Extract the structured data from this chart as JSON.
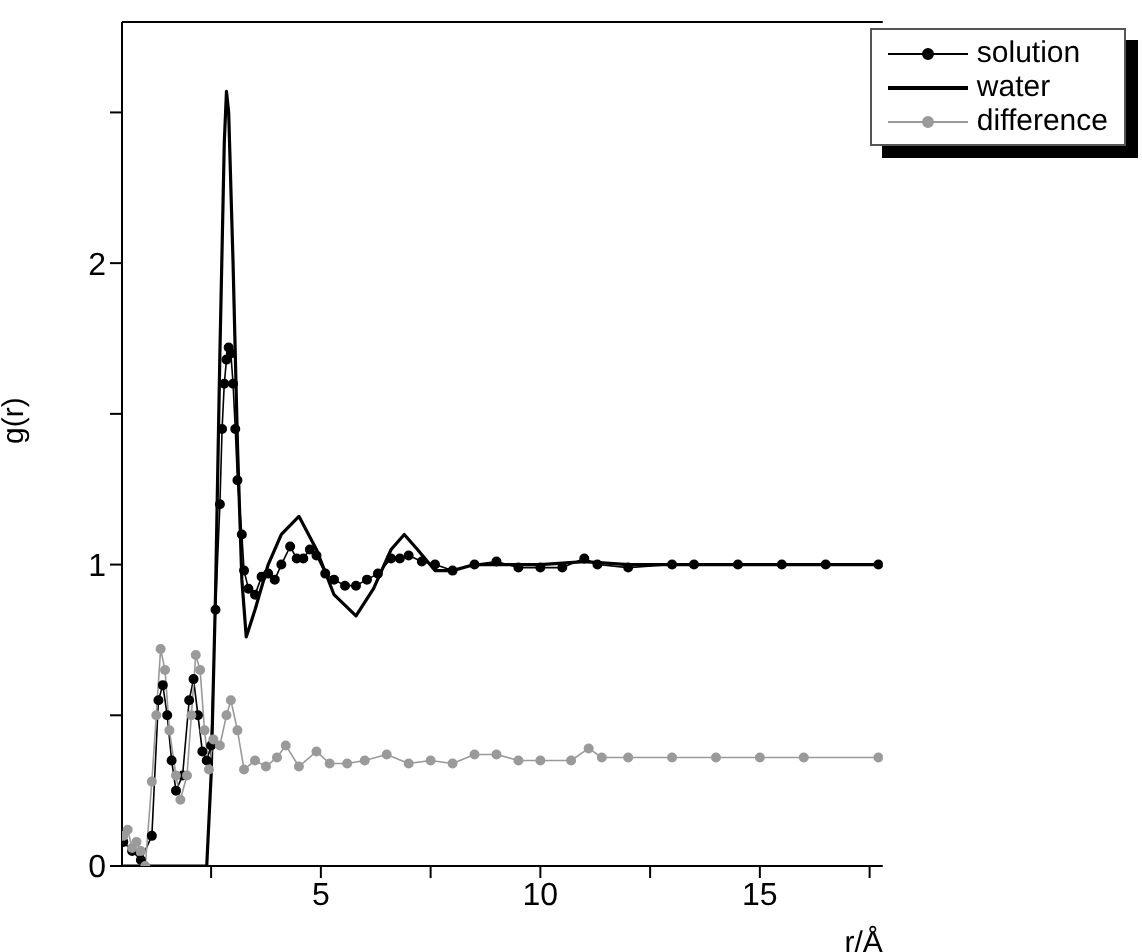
{
  "chart_data": {
    "type": "line",
    "xlabel": "r/Å",
    "ylabel": "g(r)",
    "xlim": [
      0.47,
      17.8
    ],
    "ylim": [
      0,
      2.8
    ],
    "xticks": [
      {
        "value": 2.5,
        "label": null
      },
      5,
      {
        "value": 7.5,
        "label": null
      },
      10,
      {
        "value": 12.5,
        "label": null
      },
      15,
      {
        "value": 17.5,
        "label": null
      }
    ],
    "yticks": [
      0,
      {
        "value": 0.5,
        "label": null
      },
      1,
      {
        "value": 1.5,
        "label": null
      },
      2,
      {
        "value": 2.5,
        "label": null
      }
    ],
    "legend": "top right",
    "series": [
      {
        "name": "solution",
        "color": "#000000",
        "marker": "circle",
        "values": [
          0.08,
          0.05,
          0.02,
          0.1,
          0.55,
          0.6,
          0.5,
          0.35,
          0.25,
          0.3,
          0.55,
          0.62,
          0.5,
          0.38,
          0.35,
          0.4,
          0.85,
          1.2,
          1.45,
          1.6,
          1.68,
          1.72,
          1.7,
          1.6,
          1.45,
          1.28,
          1.1,
          0.98,
          0.92,
          0.9,
          0.96,
          0.97,
          0.95,
          1.0,
          1.06,
          1.02,
          1.02,
          1.05,
          1.03,
          0.97,
          0.95,
          0.93,
          0.93,
          0.95,
          0.97,
          1.02,
          1.02,
          1.03,
          1.01,
          1.0,
          0.98,
          1.0,
          1.01,
          0.99,
          0.99,
          0.99,
          1.02,
          1.0,
          0.99,
          1.0,
          1.0,
          1.0,
          1.0,
          1.0,
          1.0
        ],
        "x": [
          0.5,
          0.7,
          0.9,
          1.15,
          1.3,
          1.4,
          1.5,
          1.6,
          1.7,
          1.85,
          2.0,
          2.1,
          2.2,
          2.3,
          2.4,
          2.5,
          2.6,
          2.7,
          2.75,
          2.8,
          2.85,
          2.9,
          2.95,
          3.0,
          3.05,
          3.1,
          3.2,
          3.25,
          3.35,
          3.5,
          3.65,
          3.8,
          3.95,
          4.1,
          4.3,
          4.45,
          4.6,
          4.75,
          4.9,
          5.1,
          5.3,
          5.55,
          5.8,
          6.05,
          6.3,
          6.6,
          6.8,
          7.0,
          7.3,
          7.6,
          8.0,
          8.5,
          9.0,
          9.5,
          10.0,
          10.5,
          11.0,
          11.3,
          12.0,
          13.0,
          13.5,
          14.5,
          15.5,
          16.5,
          17.7
        ]
      },
      {
        "name": "water",
        "color": "#000000",
        "marker": "none",
        "values": [
          0,
          0,
          0.3,
          0.9,
          1.7,
          2.4,
          2.57,
          2.5,
          2.0,
          1.4,
          0.95,
          0.76,
          0.85,
          1.0,
          1.1,
          1.16,
          1.05,
          0.9,
          0.83,
          0.92,
          1.05,
          1.1,
          1.05,
          0.98,
          0.98,
          1.0,
          1.0,
          1.0,
          1.01,
          1.0,
          1.0,
          1.0
        ],
        "x": [
          0.5,
          2.4,
          2.5,
          2.6,
          2.7,
          2.8,
          2.85,
          2.9,
          3.0,
          3.1,
          3.2,
          3.3,
          3.5,
          3.8,
          4.1,
          4.5,
          4.9,
          5.3,
          5.8,
          6.2,
          6.6,
          6.9,
          7.2,
          7.6,
          8.0,
          8.5,
          9.0,
          10.0,
          11.0,
          12.0,
          14.0,
          17.7
        ]
      },
      {
        "name": "difference",
        "color": "#9a9a9a",
        "marker": "circle",
        "values": [
          0.1,
          0.12,
          0.06,
          0.08,
          0.05,
          0.0,
          0.28,
          0.5,
          0.72,
          0.65,
          0.45,
          0.3,
          0.22,
          0.3,
          0.5,
          0.7,
          0.65,
          0.45,
          0.32,
          0.42,
          0.4,
          0.5,
          0.55,
          0.45,
          0.32,
          0.35,
          0.33,
          0.36,
          0.4,
          0.33,
          0.38,
          0.34,
          0.34,
          0.35,
          0.37,
          0.34,
          0.35,
          0.34,
          0.37,
          0.37,
          0.35,
          0.35,
          0.35,
          0.39,
          0.36,
          0.36,
          0.36,
          0.36,
          0.36,
          0.36,
          0.36
        ],
        "x": [
          0.5,
          0.6,
          0.7,
          0.8,
          0.9,
          1.0,
          1.15,
          1.25,
          1.35,
          1.45,
          1.55,
          1.7,
          1.8,
          1.95,
          2.05,
          2.15,
          2.25,
          2.35,
          2.45,
          2.55,
          2.7,
          2.85,
          2.95,
          3.1,
          3.25,
          3.5,
          3.75,
          4.0,
          4.2,
          4.5,
          4.9,
          5.2,
          5.6,
          6.0,
          6.5,
          7.0,
          7.5,
          8.0,
          8.5,
          9.0,
          9.5,
          10.0,
          10.7,
          11.1,
          11.4,
          12.0,
          13.0,
          14.0,
          15.0,
          16.0,
          17.7
        ]
      }
    ]
  }
}
